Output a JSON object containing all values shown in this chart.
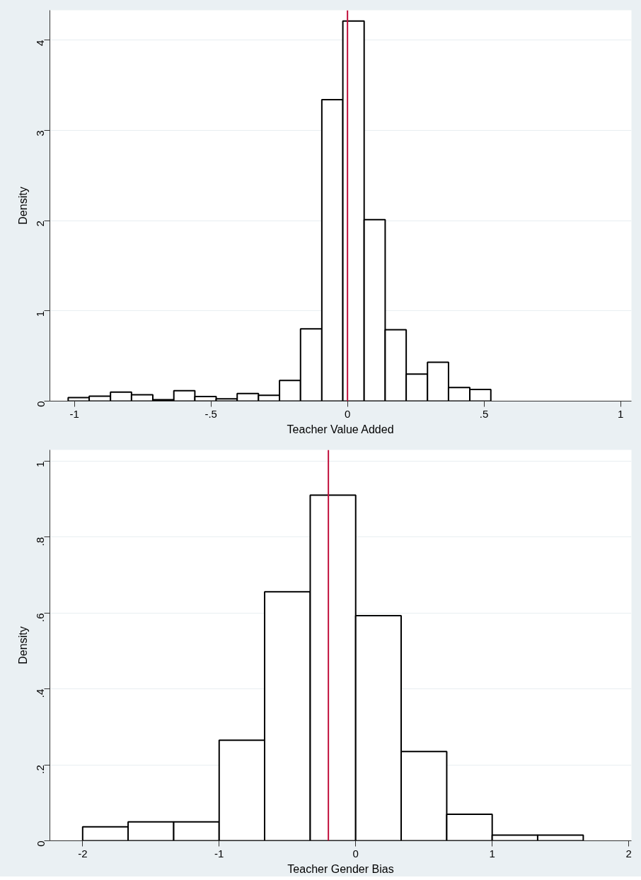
{
  "chart_data": [
    {
      "type": "histogram",
      "xlabel": "Teacher Value Added",
      "ylabel": "Density",
      "color": "#000000",
      "bins": [
        -1.023,
        -0.946,
        -0.868,
        -0.791,
        -0.713,
        -0.636,
        -0.559,
        -0.481,
        -0.404,
        -0.326,
        -0.249,
        -0.172,
        -0.094,
        -0.017,
        0.061,
        0.138,
        0.215,
        0.293,
        0.37,
        0.448,
        0.525
      ],
      "values": [
        0.04,
        0.055,
        0.1,
        0.07,
        0.015,
        0.115,
        0.05,
        0.025,
        0.085,
        0.065,
        0.23,
        0.8,
        3.34,
        4.21,
        2.01,
        0.79,
        0.3,
        0.43,
        0.15,
        0.13
      ],
      "xlim": [
        -1.09,
        1.04
      ],
      "ylim": [
        0,
        4.33
      ],
      "xticks": [
        -1,
        {
          "value": -0.5,
          "label": "-.5"
        },
        0,
        {
          "value": 0.5,
          "label": ".5"
        },
        1
      ],
      "yticks": [
        0,
        1,
        2,
        3,
        4
      ],
      "ref_lines": [
        {
          "axis": "x",
          "value": 0,
          "color": "#c0103c"
        }
      ],
      "grid": "y"
    },
    {
      "type": "histogram",
      "xlabel": "Teacher Gender Bias",
      "ylabel": "Density",
      "color": "#000000",
      "bins": [
        -2,
        -1.667,
        -1.333,
        -1,
        -0.667,
        -0.333,
        0,
        0.333,
        0.667,
        1,
        1.333,
        1.667
      ],
      "values": [
        0.037,
        0.05,
        0.05,
        0.265,
        0.656,
        0.911,
        0.593,
        0.235,
        0.07,
        0.015,
        0.015
      ],
      "xlim": [
        -2.24,
        2.02
      ],
      "ylim": [
        0,
        1.03
      ],
      "xticks": [
        -2,
        -1,
        0,
        1,
        2
      ],
      "yticks": [
        0,
        {
          "value": 0.2,
          "label": ".2"
        },
        {
          "value": 0.4,
          "label": ".4"
        },
        {
          "value": 0.6,
          "label": ".6"
        },
        {
          "value": 0.8,
          "label": ".8"
        },
        1
      ],
      "ref_lines": [
        {
          "axis": "x",
          "value": -0.2,
          "color": "#c0103c"
        }
      ],
      "grid": "y"
    }
  ]
}
